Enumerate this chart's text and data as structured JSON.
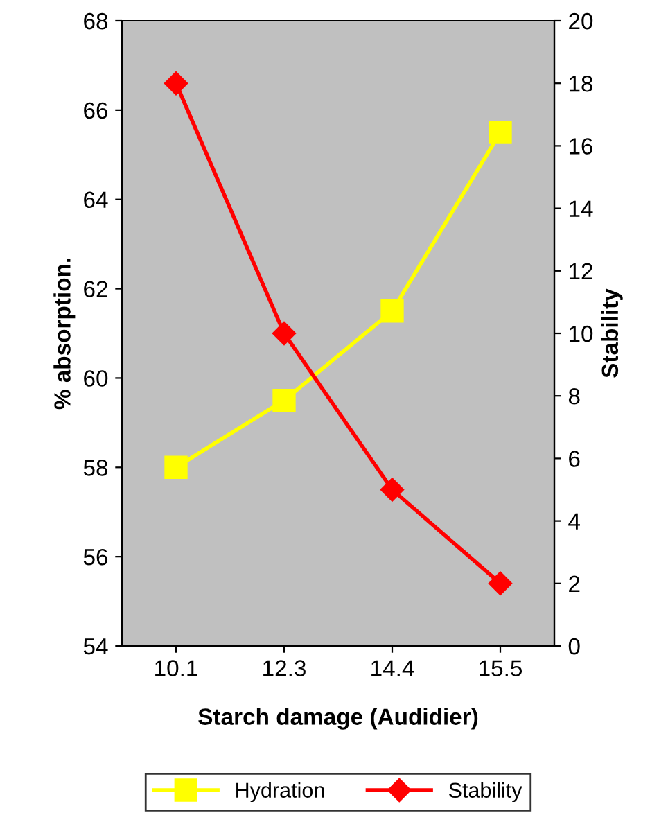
{
  "chart_data": {
    "type": "line",
    "xlabel": "Starch damage (Audidier)",
    "ylabel": "% absorption.",
    "y2label": "Stability",
    "categories": [
      "10.1",
      "12.3",
      "14.4",
      "15.5"
    ],
    "series": [
      {
        "name": "Hydration",
        "color": "#ffff00",
        "values": [
          58,
          59.5,
          61.5,
          65.5
        ],
        "marker": "square"
      },
      {
        "name": "Stability",
        "color": "#ff0000",
        "values": [
          18,
          10,
          5,
          2
        ],
        "marker": "diamond",
        "axis": "y2"
      }
    ],
    "ylim": [
      54,
      68
    ],
    "yticks": [
      54,
      56,
      58,
      60,
      62,
      64,
      66,
      68
    ],
    "y2lim": [
      0,
      20
    ],
    "y2ticks": [
      0,
      2,
      4,
      6,
      8,
      10,
      12,
      14,
      16,
      18,
      20
    ],
    "grid": false,
    "legend": "bottom",
    "line_style": "solid"
  }
}
